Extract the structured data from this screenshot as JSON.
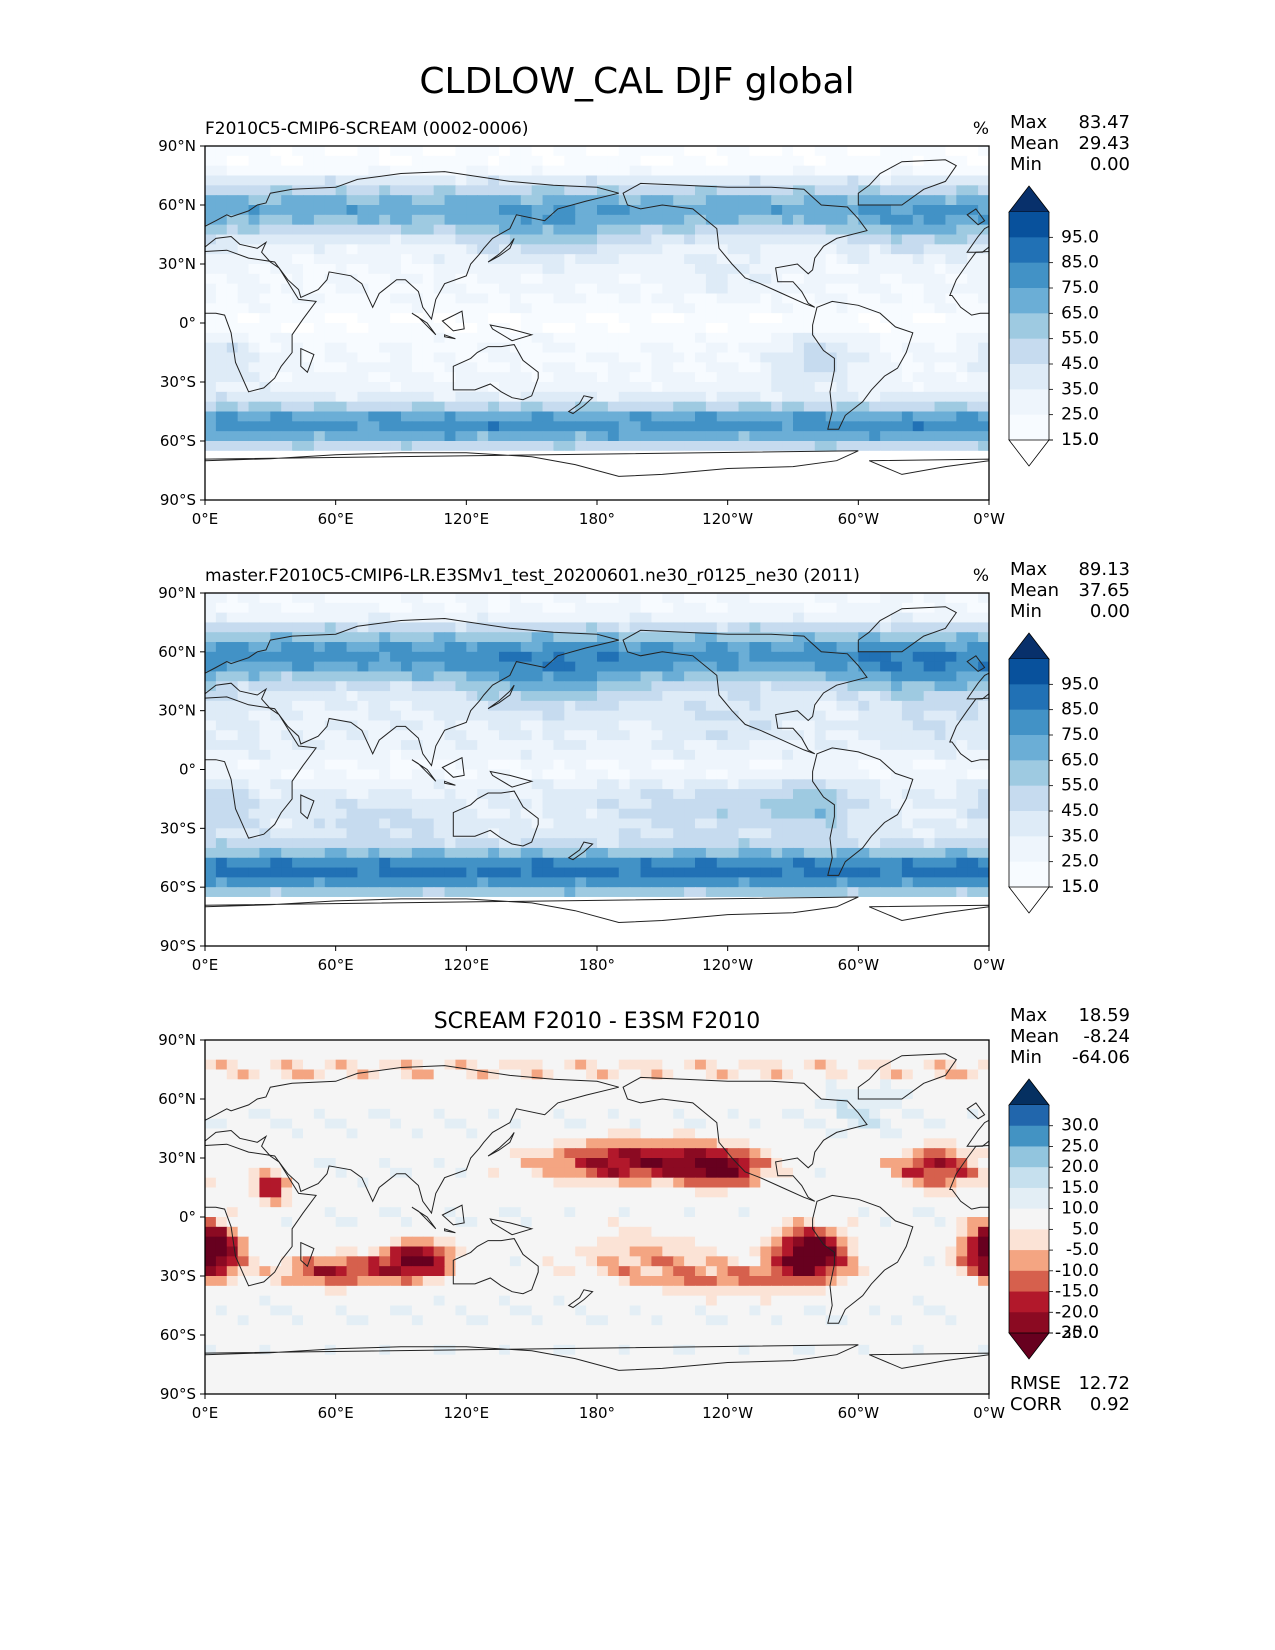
{
  "figure": {
    "title": "CLDLOW_CAL DJF global"
  },
  "chart_data": [
    {
      "type": "heatmap",
      "title": "F2010C5-CMIP6-SCREAM (0002-0006)",
      "units": "%",
      "stats": [
        {
          "label": "Max",
          "value": "83.47"
        },
        {
          "label": "Mean",
          "value": "29.43"
        },
        {
          "label": "Min",
          "value": "0.00"
        }
      ],
      "x_ticks": [
        "0°E",
        "60°E",
        "120°E",
        "180°",
        "120°W",
        "60°W",
        "0°W"
      ],
      "y_ticks": [
        "90°N",
        "60°N",
        "30°N",
        "0°",
        "30°S",
        "60°S",
        "90°S"
      ],
      "xlim": [
        0,
        360
      ],
      "ylim": [
        -90,
        90
      ],
      "colorbar": {
        "levels": [
          "95.0",
          "85.0",
          "75.0",
          "65.0",
          "55.0",
          "45.0",
          "35.0",
          "25.0",
          "15.0",
          "5.0"
        ],
        "colors": [
          "#08306b",
          "#08519c",
          "#2171b5",
          "#4292c6",
          "#6baed6",
          "#9ecae1",
          "#c6dbef",
          "#deebf7",
          "#eef5fc",
          "#f7fbff",
          "#ffffff"
        ]
      },
      "field": "cloud"
    },
    {
      "type": "heatmap",
      "title": "master.F2010C5-CMIP6-LR.E3SMv1_test_20200601.ne30_r0125_ne30 (2011)",
      "units": "%",
      "stats": [
        {
          "label": "Max",
          "value": "89.13"
        },
        {
          "label": "Mean",
          "value": "37.65"
        },
        {
          "label": "Min",
          "value": "0.00"
        }
      ],
      "x_ticks": [
        "0°E",
        "60°E",
        "120°E",
        "180°",
        "120°W",
        "60°W",
        "0°W"
      ],
      "y_ticks": [
        "90°N",
        "60°N",
        "30°N",
        "0°",
        "30°S",
        "60°S",
        "90°S"
      ],
      "xlim": [
        0,
        360
      ],
      "ylim": [
        -90,
        90
      ],
      "colorbar": {
        "levels": [
          "95.0",
          "85.0",
          "75.0",
          "65.0",
          "55.0",
          "45.0",
          "35.0",
          "25.0",
          "15.0",
          "5.0"
        ],
        "colors": [
          "#08306b",
          "#08519c",
          "#2171b5",
          "#4292c6",
          "#6baed6",
          "#9ecae1",
          "#c6dbef",
          "#deebf7",
          "#eef5fc",
          "#f7fbff",
          "#ffffff"
        ]
      },
      "field": "cloud"
    },
    {
      "type": "heatmap",
      "title": "SCREAM F2010 - E3SM F2010",
      "units": "",
      "stats": [
        {
          "label": "Max",
          "value": "18.59"
        },
        {
          "label": "Mean",
          "value": "-8.24"
        },
        {
          "label": "Min",
          "value": "-64.06"
        }
      ],
      "extra_stats": [
        {
          "label": "RMSE",
          "value": "12.72"
        },
        {
          "label": "CORR",
          "value": "0.92"
        }
      ],
      "x_ticks": [
        "0°E",
        "60°E",
        "120°E",
        "180°",
        "120°W",
        "60°W",
        "0°W"
      ],
      "y_ticks": [
        "90°N",
        "60°N",
        "30°N",
        "0°",
        "30°S",
        "60°S",
        "90°S"
      ],
      "xlim": [
        0,
        360
      ],
      "ylim": [
        -90,
        90
      ],
      "colorbar": {
        "levels": [
          "30.0",
          "25.0",
          "20.0",
          "15.0",
          "10.0",
          "5.0",
          "-5.0",
          "-10.0",
          "-15.0",
          "-20.0",
          "-25.0",
          "-30.0"
        ],
        "colors": [
          "#053061",
          "#2166ac",
          "#4393c3",
          "#92c5de",
          "#c6e0ee",
          "#e3eef5",
          "#f5f5f5",
          "#fbe3d6",
          "#f4a582",
          "#d6604d",
          "#b2182b",
          "#8b0a22",
          "#67001f"
        ]
      },
      "field": "diff"
    }
  ]
}
